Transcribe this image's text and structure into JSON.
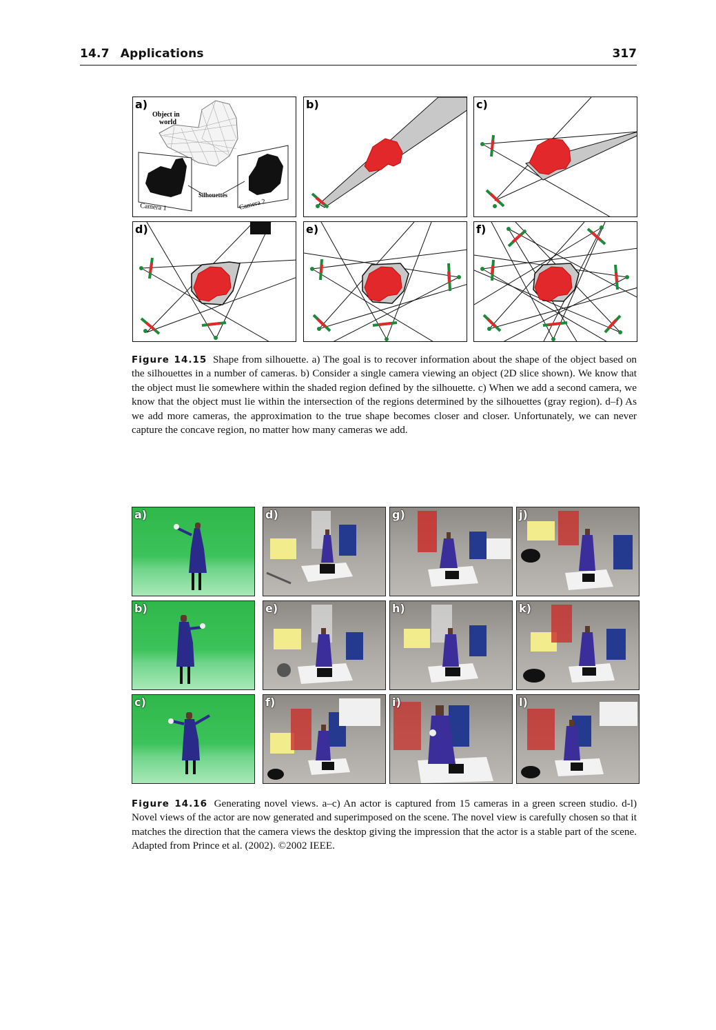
{
  "header": {
    "section_number": "14.7",
    "section_title": "Applications",
    "page_number": "317"
  },
  "figure_14_15": {
    "panels": [
      {
        "id": "a",
        "label": "a)"
      },
      {
        "id": "b",
        "label": "b)"
      },
      {
        "id": "c",
        "label": "c)"
      },
      {
        "id": "d",
        "label": "d)"
      },
      {
        "id": "e",
        "label": "e)"
      },
      {
        "id": "f",
        "label": "f)"
      }
    ],
    "panel_a_text": {
      "object_line1": "Object in",
      "object_line2": "world",
      "silhouettes": "Silhouettes",
      "camera1": "Camera 1",
      "camera2": "Camera 2"
    },
    "caption_label": "Figure 14.15",
    "caption_text": "Shape from silhouette. a) The goal is to recover information about the shape of the object based on the silhouettes in a number of cameras. b) Consider a single camera viewing an object (2D slice shown). We know that the object must lie somewhere within the shaded region defined by the silhouette. c) When we add a second camera, we know that the object must lie within the intersection of the regions determined by the silhouettes (gray region). d–f) As we add more cameras, the approximation to the true shape becomes closer and closer. Unfortunately, we can never capture the concave region, no matter how many cameras we add."
  },
  "figure_14_16": {
    "panels": [
      {
        "id": "a",
        "label": "a)"
      },
      {
        "id": "d",
        "label": "d)"
      },
      {
        "id": "g",
        "label": "g)"
      },
      {
        "id": "j",
        "label": "j)"
      },
      {
        "id": "b",
        "label": "b)"
      },
      {
        "id": "e",
        "label": "e)"
      },
      {
        "id": "h",
        "label": "h)"
      },
      {
        "id": "k",
        "label": "k)"
      },
      {
        "id": "c",
        "label": "c)"
      },
      {
        "id": "f",
        "label": "f)"
      },
      {
        "id": "i",
        "label": "i)"
      },
      {
        "id": "l",
        "label": "l)"
      }
    ],
    "caption_label": "Figure 14.16",
    "caption_text": "Generating novel views. a–c) An actor is captured from 15 cameras in a green screen studio. d-l) Novel views of the actor are now generated and superimposed on the scene. The novel view is carefully chosen so that it matches the direction that the camera views the desktop giving the impression that the actor is a stable part of the scene. Adapted from Prince et al. (2002). ©2002 IEEE."
  }
}
